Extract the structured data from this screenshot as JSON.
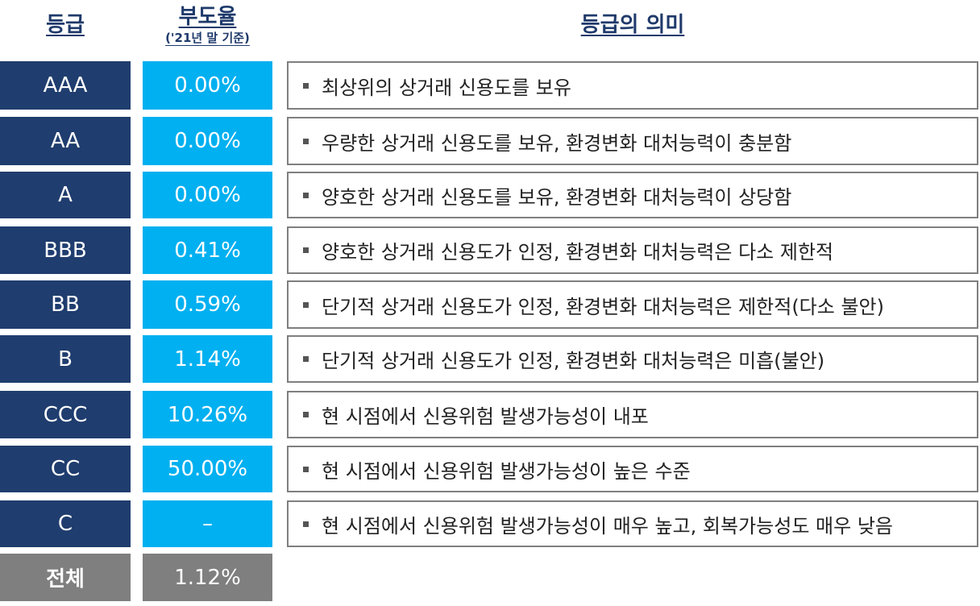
{
  "header": {
    "grade": "등급",
    "rate": "부도율",
    "rate_sub": "('21년 말 기준)",
    "meaning": "등급의 의미"
  },
  "rows": [
    {
      "grade": "AAA",
      "rate": "0.00%",
      "meaning": "최상위의 상거래 신용도를 보유"
    },
    {
      "grade": "AA",
      "rate": "0.00%",
      "meaning": "우량한 상거래 신용도를 보유, 환경변화 대처능력이 충분함"
    },
    {
      "grade": "A",
      "rate": "0.00%",
      "meaning": "양호한 상거래 신용도를 보유, 환경변화 대처능력이 상당함"
    },
    {
      "grade": "BBB",
      "rate": "0.41%",
      "meaning": "양호한 상거래 신용도가 인정, 환경변화 대처능력은 다소 제한적"
    },
    {
      "grade": "BB",
      "rate": "0.59%",
      "meaning": "단기적 상거래 신용도가 인정, 환경변화 대처능력은 제한적(다소 불안)"
    },
    {
      "grade": "B",
      "rate": "1.14%",
      "meaning": "단기적 상거래 신용도가 인정, 환경변화 대처능력은 미흡(불안)"
    },
    {
      "grade": "CCC",
      "rate": "10.26%",
      "meaning": "현 시점에서 신용위험 발생가능성이 내포"
    },
    {
      "grade": "CC",
      "rate": "50.00%",
      "meaning": "현 시점에서 신용위험 발생가능성이 높은 수준"
    },
    {
      "grade": "C",
      "rate": "–",
      "meaning": "현 시점에서 신용위험 발생가능성이 매우 높고, 회복가능성도 매우 낮음"
    }
  ],
  "total": {
    "grade": "전체",
    "rate": "1.12%"
  },
  "colors": {
    "grade_bg": "#1f3d6e",
    "rate_bg": "#00b0f0",
    "total_bg": "#7f7f7f",
    "header_text": "#1f3a6b"
  }
}
